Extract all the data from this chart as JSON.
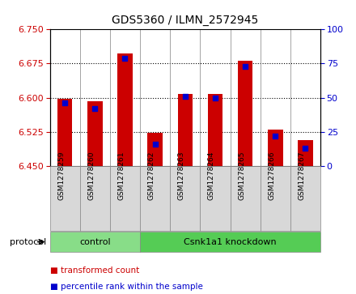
{
  "title": "GDS5360 / ILMN_2572945",
  "samples": [
    "GSM1278259",
    "GSM1278260",
    "GSM1278261",
    "GSM1278262",
    "GSM1278263",
    "GSM1278264",
    "GSM1278265",
    "GSM1278266",
    "GSM1278267"
  ],
  "transformed_counts": [
    6.597,
    6.592,
    6.697,
    6.523,
    6.608,
    6.608,
    6.682,
    6.53,
    6.507
  ],
  "percentile_ranks": [
    46,
    42,
    79,
    16,
    51,
    50,
    73,
    22,
    13
  ],
  "ylim_left": [
    6.45,
    6.75
  ],
  "yticks_left": [
    6.45,
    6.525,
    6.6,
    6.675,
    6.75
  ],
  "ylim_right": [
    0,
    100
  ],
  "yticks_right": [
    0,
    25,
    50,
    75,
    100
  ],
  "bar_color": "#cc0000",
  "blue_color": "#0000cc",
  "bar_base": 6.45,
  "protocol_groups": [
    {
      "label": "control",
      "indices": [
        0,
        1,
        2
      ],
      "color": "#88dd88"
    },
    {
      "label": "Csnk1a1 knockdown",
      "indices": [
        3,
        4,
        5,
        6,
        7,
        8
      ],
      "color": "#55cc55"
    }
  ],
  "legend_items": [
    {
      "label": "transformed count",
      "color": "#cc0000"
    },
    {
      "label": "percentile rank within the sample",
      "color": "#0000cc"
    }
  ],
  "protocol_label": "protocol",
  "axis_color_left": "#cc0000",
  "axis_color_right": "#0000cc"
}
